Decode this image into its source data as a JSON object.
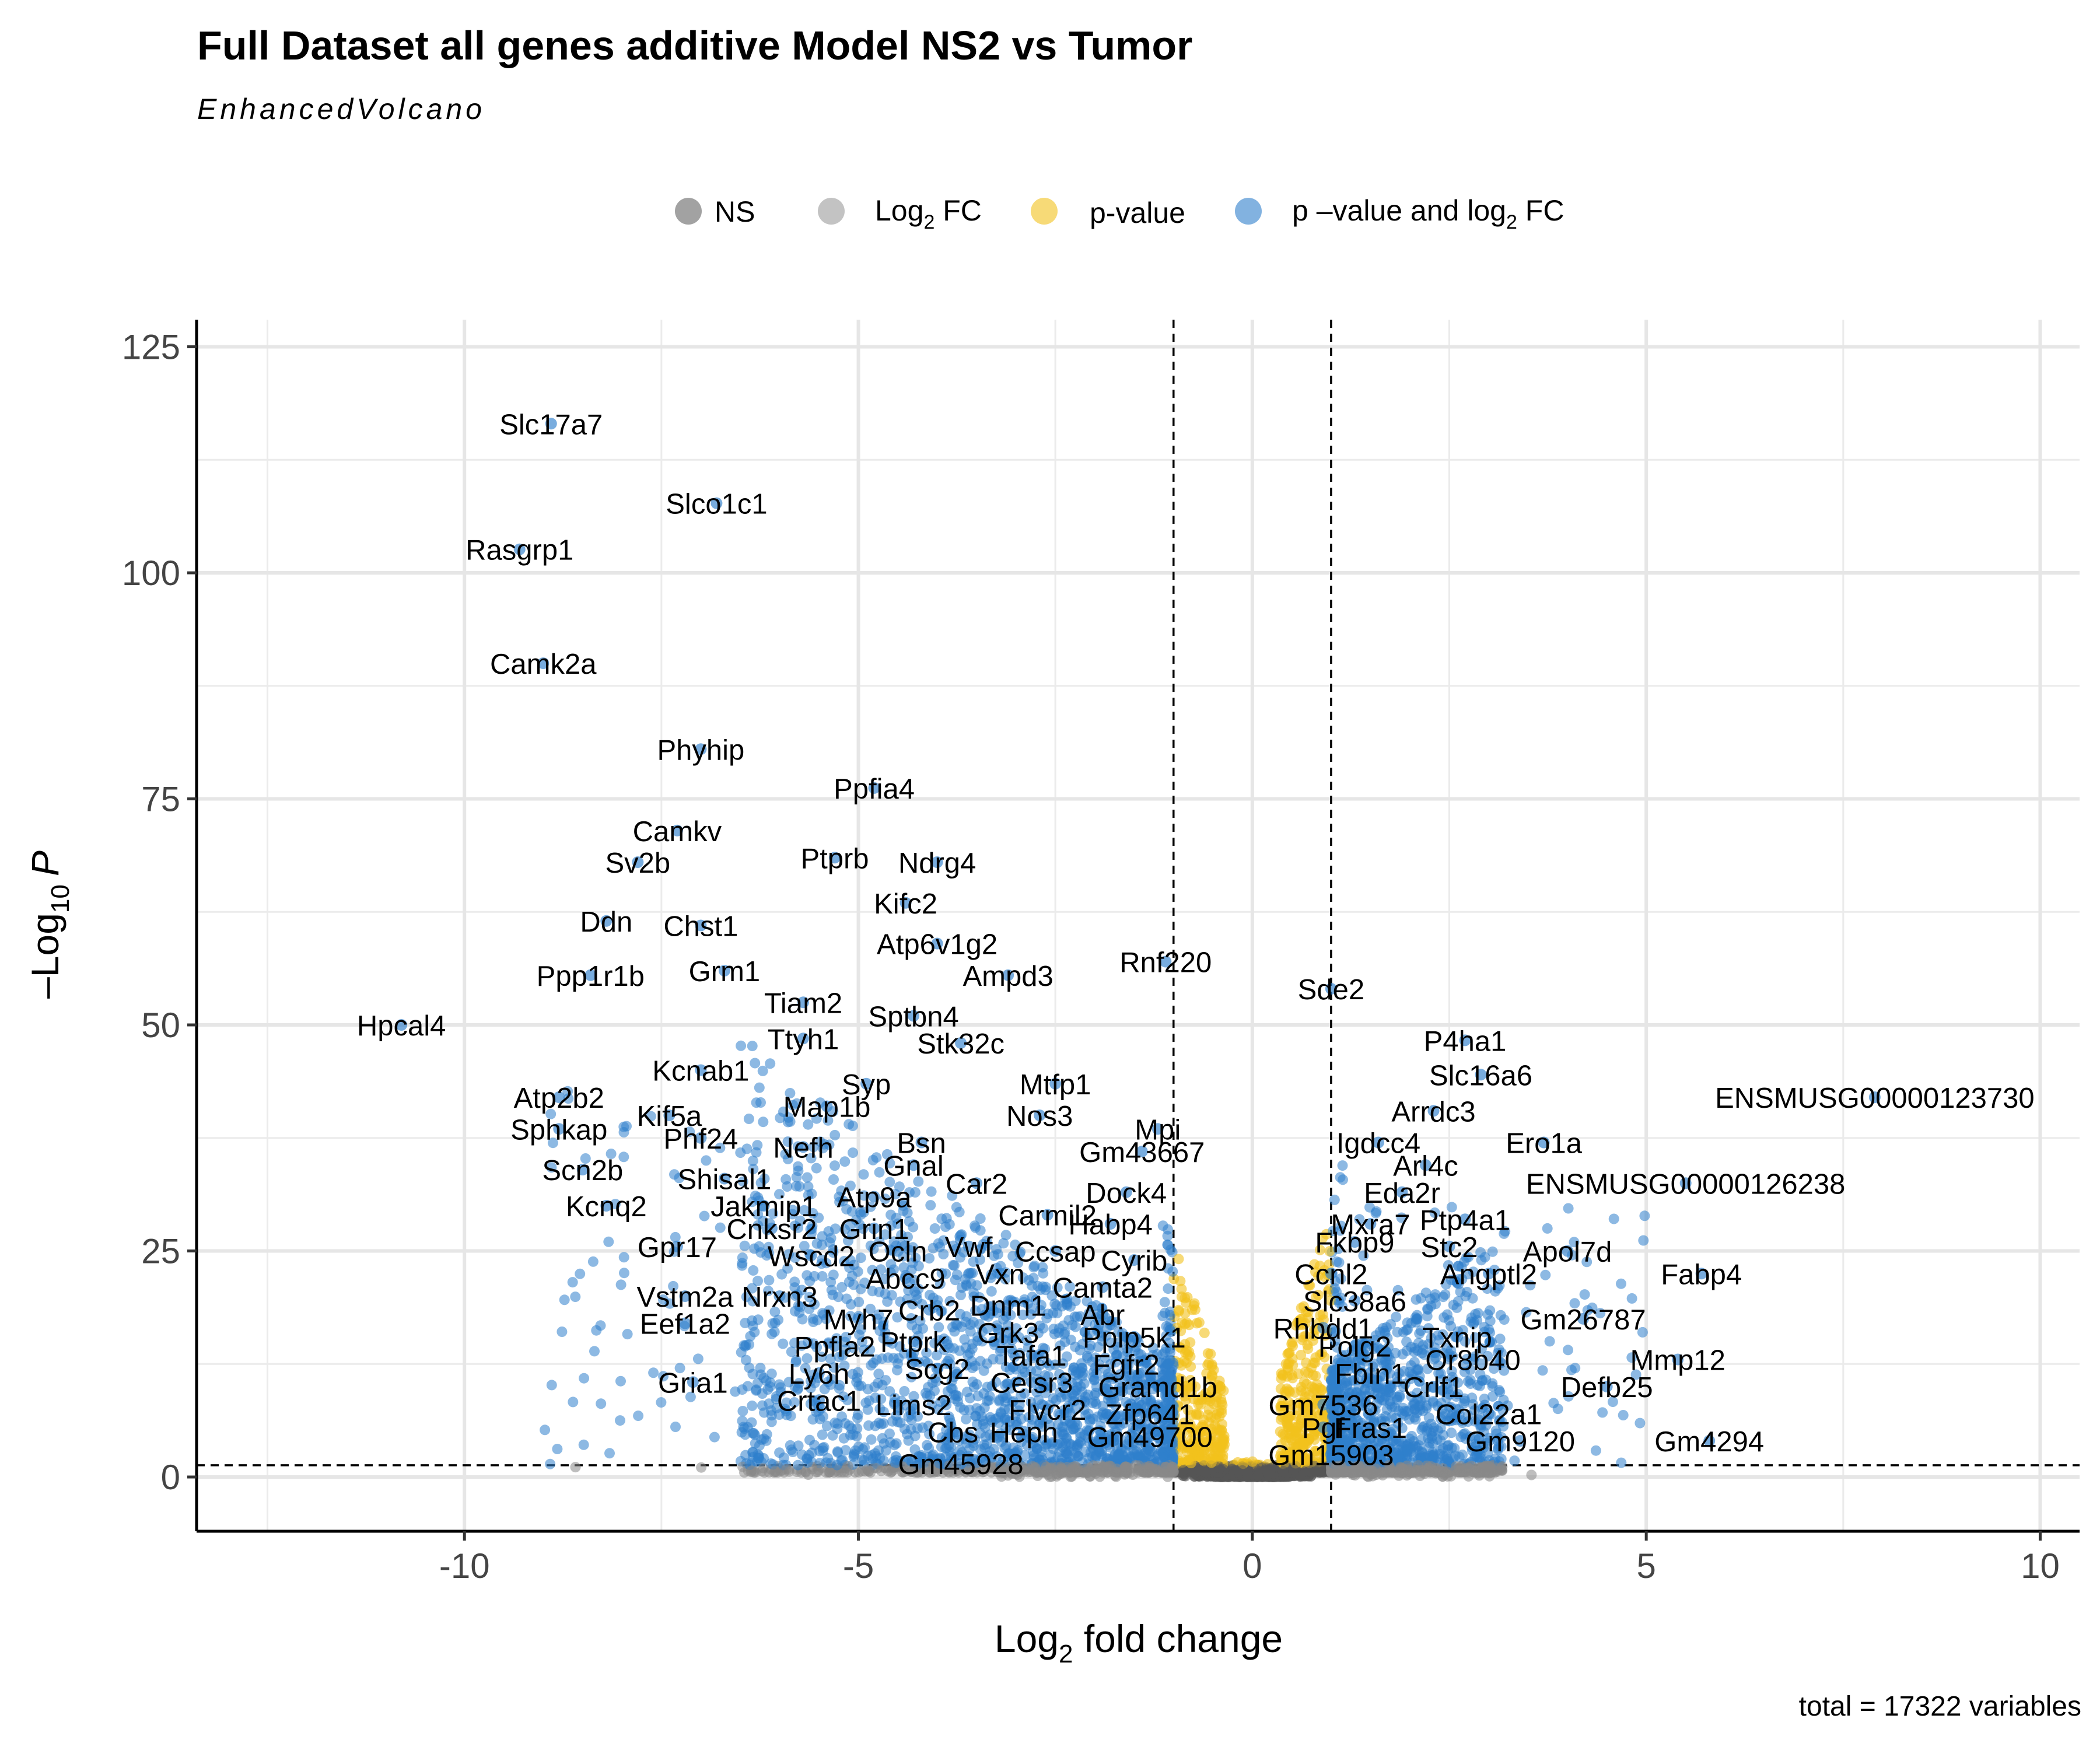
{
  "chart_data": {
    "type": "scatter",
    "title": "Full Dataset all genes additive Model NS2 vs Tumor",
    "subtitle": "EnhancedVolcano",
    "caption": "total = 17322 variables",
    "xlabel": {
      "base": "Log",
      "sub": "2",
      "rest": " fold change"
    },
    "ylabel": {
      "prefix": "–Log",
      "sub": "10",
      "italic": "P"
    },
    "xlim": [
      -13.4,
      10.5
    ],
    "ylim": [
      -6,
      128
    ],
    "xticks": [
      -10,
      -5,
      0,
      5,
      10
    ],
    "yticks": [
      0,
      25,
      50,
      75,
      100,
      125
    ],
    "xtick_labels": [
      "-10",
      "-5",
      "0",
      "5",
      "10"
    ],
    "ytick_labels": [
      "0",
      "25",
      "50",
      "75",
      "100",
      "125"
    ],
    "grid": true,
    "cutoffs": {
      "fc": [
        -1,
        1
      ],
      "p": 1.3
    },
    "colors": {
      "ns": "#555555",
      "fc": "#888888",
      "p": "#f2c11d",
      "both": "#2f7fcc"
    },
    "legend": {
      "position": "top",
      "items": [
        {
          "key": "ns",
          "label": "NS"
        },
        {
          "key": "fc",
          "label_base": "Log",
          "label_sub": "2",
          "label_rest": " FC"
        },
        {
          "key": "p",
          "label": "p-value"
        },
        {
          "key": "both",
          "label_base": "p –value and log",
          "label_sub": "2",
          "label_rest": " FC"
        }
      ]
    },
    "labeled_points": [
      {
        "label": "Slc17a7",
        "x": -8.9,
        "y": 116.5
      },
      {
        "label": "Slco1c1",
        "x": -6.8,
        "y": 107.7
      },
      {
        "label": "Rasgrp1",
        "x": -9.3,
        "y": 102.6
      },
      {
        "label": "Camk2a",
        "x": -9.0,
        "y": 90.0
      },
      {
        "label": "Phyhip",
        "x": -7.0,
        "y": 80.5
      },
      {
        "label": "Ppfia4",
        "x": -4.8,
        "y": 76.2
      },
      {
        "label": "Camkv",
        "x": -7.3,
        "y": 71.5
      },
      {
        "label": "Sv2b",
        "x": -7.8,
        "y": 68.0
      },
      {
        "label": "Ptprb",
        "x": -5.3,
        "y": 68.5
      },
      {
        "label": "Ndrg4",
        "x": -4.0,
        "y": 68.0
      },
      {
        "label": "Kifc2",
        "x": -4.4,
        "y": 63.5
      },
      {
        "label": "Ddn",
        "x": -8.2,
        "y": 61.5
      },
      {
        "label": "Chst1",
        "x": -7.0,
        "y": 61.0
      },
      {
        "label": "Atp6v1g2",
        "x": -4.0,
        "y": 59.0
      },
      {
        "label": "Ppp1r1b",
        "x": -8.4,
        "y": 55.5
      },
      {
        "label": "Grm1",
        "x": -6.7,
        "y": 56.0
      },
      {
        "label": "Rnf220",
        "x": -1.1,
        "y": 57.0
      },
      {
        "label": "Ampd3",
        "x": -3.1,
        "y": 55.5
      },
      {
        "label": "Sde2",
        "x": 1.0,
        "y": 54.0
      },
      {
        "label": "Tiam2",
        "x": -5.7,
        "y": 52.5
      },
      {
        "label": "Sptbn4",
        "x": -4.3,
        "y": 51.0
      },
      {
        "label": "Hpcal4",
        "x": -10.8,
        "y": 50.0
      },
      {
        "label": "Ttyh1",
        "x": -5.7,
        "y": 48.5
      },
      {
        "label": "Stk32c",
        "x": -3.7,
        "y": 48.0
      },
      {
        "label": "P4ha1",
        "x": 2.7,
        "y": 48.3
      },
      {
        "label": "Kcnab1",
        "x": -7.0,
        "y": 45.0
      },
      {
        "label": "Slc16a6",
        "x": 2.9,
        "y": 44.5
      },
      {
        "label": "Syp",
        "x": -4.9,
        "y": 43.5
      },
      {
        "label": "Mtfp1",
        "x": -2.5,
        "y": 43.5
      },
      {
        "label": "Atp2b2",
        "x": -8.8,
        "y": 42.0
      },
      {
        "label": "ENSMUSG00000123730",
        "x": 7.9,
        "y": 42.0
      },
      {
        "label": "Map1b",
        "x": -5.4,
        "y": 41.0
      },
      {
        "label": "Kif5a",
        "x": -7.4,
        "y": 40.0
      },
      {
        "label": "Nos3",
        "x": -2.7,
        "y": 40.0
      },
      {
        "label": "Arrdc3",
        "x": 2.3,
        "y": 40.5
      },
      {
        "label": "Mpi",
        "x": -1.2,
        "y": 38.5
      },
      {
        "label": "Sphkap",
        "x": -8.8,
        "y": 38.5
      },
      {
        "label": "Phf24",
        "x": -7.0,
        "y": 37.5
      },
      {
        "label": "Bsn",
        "x": -4.2,
        "y": 37.0
      },
      {
        "label": "Igdcc4",
        "x": 1.6,
        "y": 37.0
      },
      {
        "label": "Ero1a",
        "x": 3.7,
        "y": 37.0
      },
      {
        "label": "Nefh",
        "x": -5.7,
        "y": 36.5
      },
      {
        "label": "Gm43667",
        "x": -1.4,
        "y": 36.0
      },
      {
        "label": "Gnal",
        "x": -4.3,
        "y": 34.5
      },
      {
        "label": "Arl4c",
        "x": 2.2,
        "y": 34.5
      },
      {
        "label": "Scn2b",
        "x": -8.5,
        "y": 34.0
      },
      {
        "label": "Shisal1",
        "x": -6.7,
        "y": 33.0
      },
      {
        "label": "Car2",
        "x": -3.5,
        "y": 32.5
      },
      {
        "label": "ENSMUSG00000126238",
        "x": 5.5,
        "y": 32.5
      },
      {
        "label": "Eda2r",
        "x": 1.9,
        "y": 31.5
      },
      {
        "label": "Atp9a",
        "x": -4.8,
        "y": 31.0
      },
      {
        "label": "Dock4",
        "x": -1.6,
        "y": 31.5
      },
      {
        "label": "Kcnq2",
        "x": -8.2,
        "y": 30.0
      },
      {
        "label": "Jakmip1",
        "x": -6.2,
        "y": 30.0
      },
      {
        "label": "Ptp4a1",
        "x": 2.7,
        "y": 28.5
      },
      {
        "label": "Carmil2",
        "x": -2.6,
        "y": 29.0
      },
      {
        "label": "Mxra7",
        "x": 1.5,
        "y": 28.0
      },
      {
        "label": "Habp4",
        "x": -1.8,
        "y": 28.0
      },
      {
        "label": "Grin1",
        "x": -4.8,
        "y": 27.5
      },
      {
        "label": "Cnksr2",
        "x": -6.1,
        "y": 27.5
      },
      {
        "label": "Fkbp9",
        "x": 1.3,
        "y": 26.0
      },
      {
        "label": "Stc2",
        "x": 2.5,
        "y": 25.5
      },
      {
        "label": "Apol7d",
        "x": 4.0,
        "y": 25.0
      },
      {
        "label": "Gpr17",
        "x": -7.3,
        "y": 25.5
      },
      {
        "label": "Vwf",
        "x": -3.6,
        "y": 25.5
      },
      {
        "label": "Ocln",
        "x": -4.5,
        "y": 25.0
      },
      {
        "label": "Ccsap",
        "x": -2.5,
        "y": 25.0
      },
      {
        "label": "Wscd2",
        "x": -5.6,
        "y": 24.5
      },
      {
        "label": "Cyrib",
        "x": -1.5,
        "y": 24.0
      },
      {
        "label": "Ccnl2",
        "x": 1.0,
        "y": 22.5
      },
      {
        "label": "Angptl2",
        "x": 3.0,
        "y": 22.5
      },
      {
        "label": "Fabp4",
        "x": 5.7,
        "y": 22.5
      },
      {
        "label": "Abcc9",
        "x": -4.4,
        "y": 22.0
      },
      {
        "label": "Vxn",
        "x": -3.2,
        "y": 22.5
      },
      {
        "label": "Camta2",
        "x": -1.9,
        "y": 21.0
      },
      {
        "label": "Vstm2a",
        "x": -7.2,
        "y": 20.0
      },
      {
        "label": "Nrxn3",
        "x": -6.0,
        "y": 20.0
      },
      {
        "label": "Slc38a6",
        "x": 1.3,
        "y": 19.5
      },
      {
        "label": "Dnm1",
        "x": -3.1,
        "y": 19.0
      },
      {
        "label": "Crb2",
        "x": -4.1,
        "y": 18.5
      },
      {
        "label": "Abr",
        "x": -1.9,
        "y": 18.0
      },
      {
        "label": "Myh7",
        "x": -5.0,
        "y": 17.5
      },
      {
        "label": "Gm26787",
        "x": 4.2,
        "y": 17.5
      },
      {
        "label": "Eef1a2",
        "x": -7.2,
        "y": 17.0
      },
      {
        "label": "Rhbdd1",
        "x": 0.9,
        "y": 16.5
      },
      {
        "label": "Grk3",
        "x": -3.1,
        "y": 16.0
      },
      {
        "label": "Txnip",
        "x": 2.6,
        "y": 15.5
      },
      {
        "label": "Ppip5k1",
        "x": -1.5,
        "y": 15.5
      },
      {
        "label": "Ptprk",
        "x": -4.3,
        "y": 15.0
      },
      {
        "label": "Ppfla2",
        "x": -5.3,
        "y": 14.5
      },
      {
        "label": "Polg2",
        "x": 1.3,
        "y": 14.5
      },
      {
        "label": "Tafa1",
        "x": -2.8,
        "y": 13.5
      },
      {
        "label": "Mmp12",
        "x": 5.4,
        "y": 13.0
      },
      {
        "label": "Or8b40",
        "x": 2.8,
        "y": 13.0
      },
      {
        "label": "Fgfr2",
        "x": -1.6,
        "y": 12.5
      },
      {
        "label": "Scg2",
        "x": -4.0,
        "y": 12.0
      },
      {
        "label": "Ly6h",
        "x": -5.5,
        "y": 11.5
      },
      {
        "label": "Fbln1",
        "x": 1.5,
        "y": 11.5
      },
      {
        "label": "Celsr3",
        "x": -2.8,
        "y": 10.5
      },
      {
        "label": "Gria1",
        "x": -7.1,
        "y": 10.5
      },
      {
        "label": "Crlf1",
        "x": 2.3,
        "y": 10.0
      },
      {
        "label": "Defb25",
        "x": 4.5,
        "y": 10.0
      },
      {
        "label": "Gramd1b",
        "x": -1.2,
        "y": 10.0
      },
      {
        "label": "Crtac1",
        "x": -5.5,
        "y": 8.5
      },
      {
        "label": "Lims2",
        "x": -4.3,
        "y": 8.0
      },
      {
        "label": "Gm7536",
        "x": 0.9,
        "y": 8.0
      },
      {
        "label": "Flvcr2",
        "x": -2.6,
        "y": 7.5
      },
      {
        "label": "Col22a1",
        "x": 3.0,
        "y": 7.0
      },
      {
        "label": "Zfp641",
        "x": -1.3,
        "y": 7.0
      },
      {
        "label": "Pgf",
        "x": 0.9,
        "y": 5.5
      },
      {
        "label": "Fras1",
        "x": 1.5,
        "y": 5.5
      },
      {
        "label": "Cbs",
        "x": -3.8,
        "y": 5.0
      },
      {
        "label": "Heph",
        "x": -2.9,
        "y": 5.0
      },
      {
        "label": "Gm49700",
        "x": -1.3,
        "y": 4.5
      },
      {
        "label": "Gm9120",
        "x": 3.4,
        "y": 4.0
      },
      {
        "label": "Gm4294",
        "x": 5.8,
        "y": 4.0
      },
      {
        "label": "Gm15903",
        "x": 1.0,
        "y": 2.5
      },
      {
        "label": "Gm45928",
        "x": -3.7,
        "y": 1.5
      }
    ]
  }
}
